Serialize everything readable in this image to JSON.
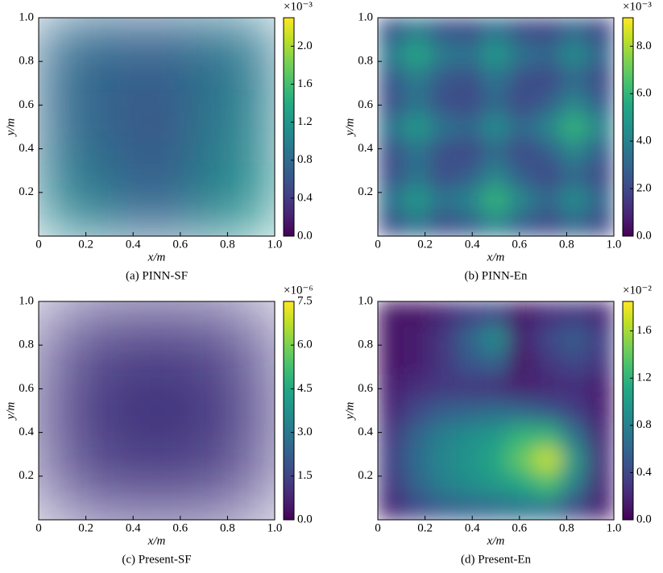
{
  "chart_data": [
    {
      "type": "heatmap",
      "title": "(a) PINN-SF",
      "xlabel": "x/m",
      "ylabel": "y/m",
      "xlim": [
        0,
        1
      ],
      "ylim": [
        0,
        1
      ],
      "xticks": [
        0,
        0.2,
        0.4,
        0.6,
        0.8,
        {
          "value": 1,
          "label": "1.0"
        }
      ],
      "yticks": [
        0.2,
        0.4,
        0.6,
        0.8,
        {
          "value": 1,
          "label": "1.0"
        }
      ],
      "colormap": "viridis",
      "clim": [
        0,
        2.3
      ],
      "cbar_label": "×10⁻³",
      "cticks": [
        {
          "value": 0,
          "label": "0.0"
        },
        0.4,
        0.8,
        1.2,
        1.6,
        {
          "value": 2,
          "label": "2.0"
        }
      ],
      "z": [
        [
          1.0,
          0.7,
          1.1
        ],
        [
          0.8,
          0.6,
          1.0
        ],
        [
          0.8,
          0.7,
          0.9
        ]
      ]
    },
    {
      "type": "heatmap",
      "title": "(b) PINN-En",
      "xlabel": "x/m",
      "ylabel": "y/m",
      "xlim": [
        0,
        1
      ],
      "ylim": [
        0,
        1
      ],
      "xticks": [
        0,
        0.2,
        0.4,
        0.6,
        0.8,
        {
          "value": 1,
          "label": "1.0"
        }
      ],
      "yticks": [
        0.2,
        0.4,
        0.6,
        0.8,
        {
          "value": 1,
          "label": "1.0"
        }
      ],
      "colormap": "viridis",
      "clim": [
        0,
        9.2
      ],
      "cbar_label": "×10⁻³",
      "cticks": [
        {
          "value": 0,
          "label": "0.0"
        },
        {
          "value": 2,
          "label": "2.0"
        },
        {
          "value": 4,
          "label": "4.0"
        },
        {
          "value": 6,
          "label": "6.0"
        },
        {
          "value": 8,
          "label": "8.0"
        }
      ],
      "z": [
        [
          2.2,
          3.5,
          2.2,
          2.7,
          4.2,
          2.7,
          2,
          3.1,
          2
        ],
        [
          3.5,
          5,
          3.5,
          4.2,
          6,
          4.2,
          3.1,
          4.5,
          3.1
        ],
        [
          2.2,
          3.5,
          2.2,
          2.7,
          4.2,
          2.7,
          2,
          3.1,
          2
        ],
        [
          2.2,
          3.5,
          2.2,
          2,
          3.1,
          2,
          2.7,
          4.2,
          2.7
        ],
        [
          3.5,
          5,
          3.5,
          3.1,
          4.5,
          3.1,
          4.2,
          6,
          4.2
        ],
        [
          2.2,
          3.5,
          2.2,
          2,
          3.1,
          2,
          2.7,
          4.2,
          2.7
        ],
        [
          2.5,
          3.8,
          2.5,
          2.2,
          3.5,
          2.2,
          2,
          3.1,
          2
        ],
        [
          3.8,
          5.5,
          3.8,
          3.5,
          5,
          3.5,
          3.1,
          4.5,
          3.1
        ],
        [
          2.5,
          3.8,
          2.5,
          2.2,
          3.5,
          2.2,
          2,
          3.1,
          2
        ]
      ]
    },
    {
      "type": "heatmap",
      "title": "(c) Present-SF",
      "xlabel": "x/m",
      "ylabel": "y/m",
      "xlim": [
        0,
        1
      ],
      "ylim": [
        0,
        1
      ],
      "xticks": [
        0,
        0.2,
        0.4,
        0.6,
        0.8,
        {
          "value": 1,
          "label": "1.0"
        }
      ],
      "yticks": [
        0.2,
        0.4,
        0.6,
        0.8,
        {
          "value": 1,
          "label": "1.0"
        }
      ],
      "colormap": "viridis",
      "clim": [
        0,
        7.5
      ],
      "cbar_label": "×10⁻⁶",
      "cticks": [
        {
          "value": 0,
          "label": "0.0"
        },
        1.5,
        {
          "value": 3,
          "label": "3.0"
        },
        4.5,
        {
          "value": 6,
          "label": "6.0"
        },
        7.5
      ],
      "z": [
        [
          1.2,
          1.2
        ],
        [
          1.2,
          1.2
        ]
      ]
    },
    {
      "type": "heatmap",
      "title": "(d) Present-En",
      "xlabel": "x/m",
      "ylabel": "y/m",
      "xlim": [
        0,
        1
      ],
      "ylim": [
        0,
        1
      ],
      "xticks": [
        0,
        0.2,
        0.4,
        0.6,
        0.8,
        {
          "value": 1,
          "label": "1.0"
        }
      ],
      "yticks": [
        0.2,
        0.4,
        0.6,
        0.8,
        {
          "value": 1,
          "label": "1.0"
        }
      ],
      "colormap": "viridis",
      "clim": [
        0,
        1.85
      ],
      "cbar_label": "×10⁻²",
      "cticks": [
        {
          "value": 0,
          "label": "0.0"
        },
        0.4,
        0.8,
        1.2,
        1.6
      ],
      "z": [
        [
          0.2,
          0.4,
          0.55,
          0.6,
          0.65,
          0.7,
          0.7,
          0.4,
          0.15
        ],
        [
          0.3,
          0.6,
          0.8,
          0.9,
          1.0,
          1.1,
          1.3,
          0.8,
          0.2
        ],
        [
          0.35,
          0.65,
          0.85,
          0.95,
          1.1,
          1.4,
          1.7,
          1.0,
          0.25
        ],
        [
          0.3,
          0.6,
          0.8,
          0.9,
          1.0,
          1.2,
          1.2,
          0.7,
          0.2
        ],
        [
          0.2,
          0.4,
          0.55,
          0.6,
          0.65,
          0.6,
          0.5,
          0.35,
          0.15
        ],
        [
          0.15,
          0.25,
          0.3,
          0.3,
          0.25,
          0.15,
          0.2,
          0.25,
          0.15
        ],
        [
          0.1,
          0.15,
          0.3,
          0.5,
          0.6,
          0.1,
          0.3,
          0.4,
          0.3
        ],
        [
          0.1,
          0.15,
          0.3,
          0.6,
          0.9,
          0.15,
          0.4,
          0.55,
          0.35
        ],
        [
          0.1,
          0.1,
          0.2,
          0.35,
          0.4,
          0.1,
          0.25,
          0.3,
          0.2
        ]
      ]
    }
  ]
}
